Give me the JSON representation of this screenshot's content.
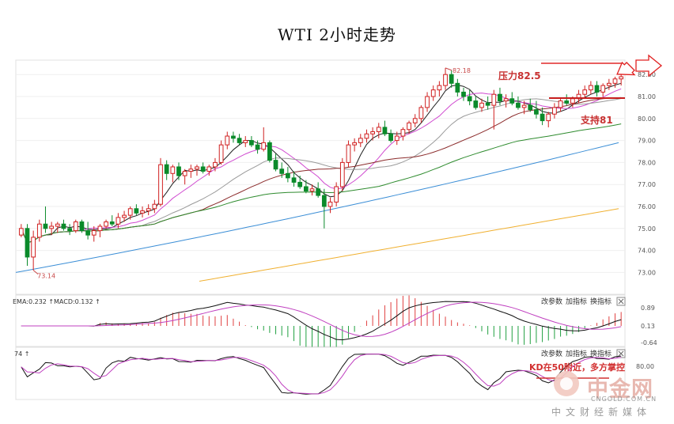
{
  "title": "WTI 2小时走势",
  "chart_data": {
    "type": "candlestick",
    "title": "WTI 2小时走势",
    "y_ticks": [
      82.0,
      81.0,
      80.0,
      79.0,
      78.0,
      77.0,
      76.0,
      75.0,
      74.0,
      73.0
    ],
    "ylim": [
      72.5,
      82.8
    ],
    "annotations": {
      "high_label": "82.18",
      "low_label": "73.14",
      "resistance_label": "压力82.5",
      "resistance_value": 82.5,
      "support_label": "支持81",
      "support_value": 81.0
    },
    "ohlc": [
      [
        74.7,
        75.2,
        74.6,
        75.0
      ],
      [
        75.0,
        75.2,
        73.3,
        73.7
      ],
      [
        73.7,
        74.9,
        73.1,
        74.6
      ],
      [
        74.6,
        75.4,
        74.4,
        75.2
      ],
      [
        75.2,
        76.0,
        74.8,
        75.0
      ],
      [
        75.0,
        75.3,
        74.7,
        75.1
      ],
      [
        75.1,
        75.3,
        74.8,
        75.2
      ],
      [
        75.2,
        75.4,
        74.9,
        75.0
      ],
      [
        75.0,
        75.2,
        74.7,
        74.9
      ],
      [
        74.9,
        75.4,
        74.8,
        75.3
      ],
      [
        75.3,
        75.4,
        74.8,
        74.9
      ],
      [
        74.9,
        75.3,
        74.5,
        74.7
      ],
      [
        74.7,
        75.1,
        74.4,
        74.9
      ],
      [
        74.9,
        75.2,
        74.6,
        75.1
      ],
      [
        75.1,
        75.4,
        75.0,
        75.3
      ],
      [
        75.3,
        75.6,
        75.1,
        75.2
      ],
      [
        75.2,
        75.7,
        75.0,
        75.5
      ],
      [
        75.5,
        75.8,
        75.3,
        75.6
      ],
      [
        75.6,
        76.0,
        75.4,
        75.9
      ],
      [
        75.9,
        76.1,
        75.6,
        75.7
      ],
      [
        75.7,
        76.0,
        75.5,
        75.8
      ],
      [
        75.8,
        76.1,
        75.6,
        75.9
      ],
      [
        75.9,
        76.3,
        75.7,
        76.1
      ],
      [
        76.1,
        78.2,
        76.0,
        77.9
      ],
      [
        77.9,
        78.1,
        77.2,
        77.5
      ],
      [
        77.5,
        77.9,
        77.1,
        77.8
      ],
      [
        77.8,
        78.0,
        77.2,
        77.4
      ],
      [
        77.4,
        77.7,
        77.0,
        77.6
      ],
      [
        77.6,
        77.9,
        77.3,
        77.7
      ],
      [
        77.7,
        77.9,
        77.4,
        77.8
      ],
      [
        77.8,
        78.0,
        77.5,
        77.6
      ],
      [
        77.6,
        77.9,
        77.4,
        77.8
      ],
      [
        77.8,
        78.2,
        77.6,
        78.0
      ],
      [
        78.0,
        79.0,
        77.9,
        78.8
      ],
      [
        78.8,
        79.4,
        78.6,
        79.2
      ],
      [
        79.2,
        79.4,
        78.9,
        79.1
      ],
      [
        79.1,
        79.3,
        78.8,
        78.9
      ],
      [
        78.9,
        79.2,
        78.7,
        79.0
      ],
      [
        79.0,
        79.2,
        78.7,
        78.8
      ],
      [
        78.8,
        79.0,
        78.4,
        78.6
      ],
      [
        78.6,
        79.6,
        78.5,
        78.9
      ],
      [
        78.9,
        79.0,
        78.0,
        78.1
      ],
      [
        78.1,
        78.4,
        77.6,
        77.7
      ],
      [
        77.7,
        78.0,
        77.3,
        77.5
      ],
      [
        77.5,
        77.8,
        77.1,
        77.3
      ],
      [
        77.3,
        77.6,
        76.9,
        77.1
      ],
      [
        77.1,
        77.4,
        76.8,
        76.9
      ],
      [
        76.9,
        77.2,
        76.6,
        76.7
      ],
      [
        76.7,
        77.0,
        76.5,
        76.8
      ],
      [
        76.8,
        77.1,
        76.4,
        76.5
      ],
      [
        76.5,
        76.8,
        75.0,
        76.0
      ],
      [
        76.0,
        76.4,
        75.7,
        76.2
      ],
      [
        76.2,
        77.1,
        76.0,
        76.9
      ],
      [
        76.9,
        78.2,
        76.7,
        78.0
      ],
      [
        78.0,
        79.0,
        77.8,
        78.8
      ],
      [
        78.8,
        79.1,
        78.5,
        78.9
      ],
      [
        78.9,
        79.3,
        78.7,
        79.1
      ],
      [
        79.1,
        79.5,
        78.9,
        79.3
      ],
      [
        79.3,
        79.6,
        79.0,
        79.4
      ],
      [
        79.4,
        79.8,
        79.1,
        79.6
      ],
      [
        79.6,
        79.9,
        79.2,
        79.3
      ],
      [
        79.3,
        79.5,
        78.9,
        79.0
      ],
      [
        79.0,
        79.4,
        78.8,
        79.2
      ],
      [
        79.2,
        79.6,
        79.0,
        79.5
      ],
      [
        79.5,
        79.9,
        79.3,
        79.8
      ],
      [
        79.8,
        80.2,
        79.6,
        80.0
      ],
      [
        80.0,
        80.6,
        79.8,
        80.5
      ],
      [
        80.5,
        81.2,
        80.3,
        81.0
      ],
      [
        81.0,
        81.5,
        80.8,
        81.3
      ],
      [
        81.3,
        81.7,
        81.0,
        81.5
      ],
      [
        81.5,
        82.3,
        81.3,
        82.0
      ],
      [
        82.0,
        82.2,
        81.4,
        81.6
      ],
      [
        81.6,
        81.8,
        81.0,
        81.2
      ],
      [
        81.2,
        81.4,
        80.8,
        81.0
      ],
      [
        81.0,
        81.3,
        80.6,
        80.8
      ],
      [
        80.8,
        81.0,
        80.4,
        80.5
      ],
      [
        80.5,
        80.9,
        80.3,
        80.7
      ],
      [
        80.7,
        81.0,
        80.4,
        80.6
      ],
      [
        80.6,
        81.3,
        79.5,
        81.1
      ],
      [
        81.1,
        81.4,
        80.6,
        80.8
      ],
      [
        80.8,
        81.1,
        80.5,
        80.9
      ],
      [
        80.9,
        81.2,
        80.6,
        80.7
      ],
      [
        80.7,
        81.0,
        80.4,
        80.5
      ],
      [
        80.5,
        80.8,
        80.2,
        80.6
      ],
      [
        80.6,
        80.9,
        80.3,
        80.4
      ],
      [
        80.4,
        80.8,
        80.0,
        80.2
      ],
      [
        80.2,
        80.5,
        79.7,
        79.9
      ],
      [
        79.9,
        80.3,
        79.6,
        80.2
      ],
      [
        80.2,
        80.7,
        80.0,
        80.5
      ],
      [
        80.5,
        80.9,
        80.3,
        80.8
      ],
      [
        80.8,
        81.1,
        80.6,
        80.7
      ],
      [
        80.7,
        81.0,
        80.5,
        80.9
      ],
      [
        80.9,
        81.3,
        80.7,
        81.1
      ],
      [
        81.1,
        81.5,
        80.9,
        81.3
      ],
      [
        81.3,
        81.7,
        81.1,
        81.5
      ],
      [
        81.5,
        81.7,
        81.0,
        81.2
      ],
      [
        81.2,
        81.6,
        81.0,
        81.5
      ],
      [
        81.5,
        81.8,
        81.3,
        81.6
      ],
      [
        81.6,
        81.9,
        81.4,
        81.8
      ],
      [
        81.8,
        82.0,
        81.5,
        81.9
      ]
    ],
    "ma_long_1": {
      "start": 73.0,
      "end": 78.9
    },
    "ma_long_2": {
      "start": 72.6,
      "end": 75.9
    },
    "macd": {
      "ema_label": "EMA:0.232",
      "macd_label": "MACD:0.132",
      "y_ticks": [
        "0.89",
        "0.13",
        "-0.64"
      ]
    },
    "kdj": {
      "label": "74",
      "y_ticks": [
        "80.00"
      ],
      "annotation": "KD在50附近，多方掌控"
    }
  },
  "panel_buttons": [
    "改参数",
    "加指标",
    "换指标"
  ],
  "watermark": {
    "brand": "中金网",
    "domain": "CNGOLD.COM.CN",
    "media": "中文财经新媒体"
  }
}
